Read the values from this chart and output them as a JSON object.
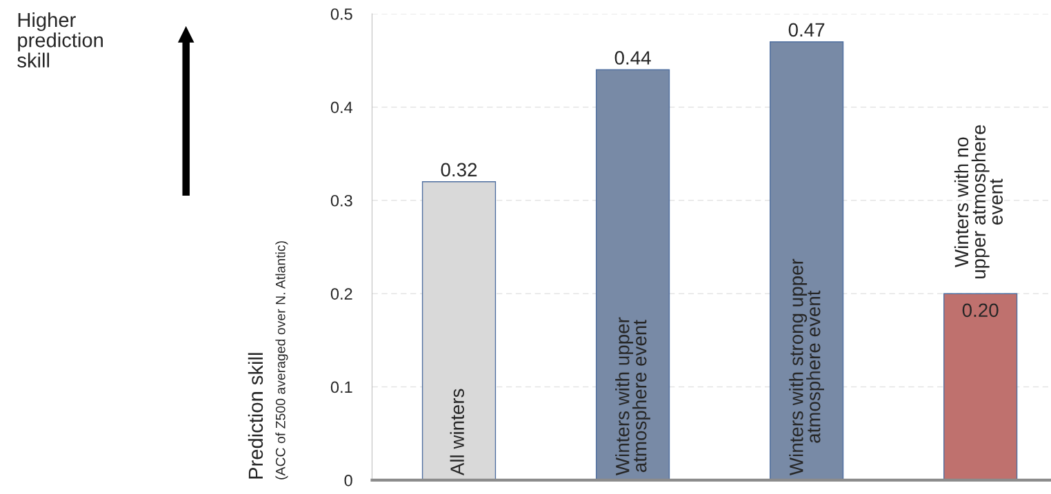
{
  "chart_data": {
    "type": "bar",
    "categories": [
      "All winters",
      "Winters with upper\natmosphere event",
      "Winters with strong upper\natmosphere event",
      "Winters with no\nupper atmosphere\nevent"
    ],
    "values": [
      0.32,
      0.44,
      0.47,
      0.2
    ],
    "colors": [
      "#d9d9d9",
      "#7088ae",
      "#7088ae",
      "#cd6560"
    ],
    "ylabel": "Prediction skill\n(ACC of Z500 averaged over N. Atlantic)",
    "ylim": [
      0,
      0.5
    ],
    "yticks": [
      0,
      0.1,
      0.2,
      0.3,
      0.4,
      0.5
    ],
    "grid": "y",
    "value_labels": [
      "0.32",
      "0.44",
      "0.47",
      "0.20"
    ],
    "annotations": [
      "Higher\nprediction\nskill"
    ]
  }
}
